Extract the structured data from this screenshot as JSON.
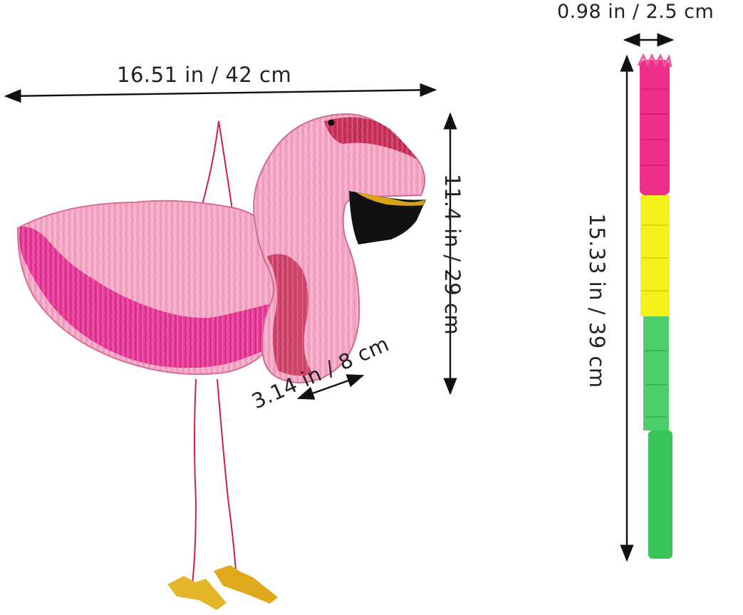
{
  "product": {
    "subject": "flamingo-pinata-with-stick",
    "colors": {
      "body_pink": "#f4a7c4",
      "wing_magenta": "#e83c9a",
      "neck_red": "#c4204a",
      "beak_black": "#111111",
      "beak_gold": "#d9a21a",
      "feet_gold": "#e5b52a",
      "stick_pink": "#ee2f8a",
      "stick_yellow": "#f4f21a",
      "stick_green": "#4ccf6a"
    }
  },
  "dimensions": {
    "width": "16.51 in / 42 cm",
    "height": "11.4 in / 29 cm",
    "depth": "3.14 in / 8 cm",
    "stick_width": "0.98 in / 2.5 cm",
    "stick_height": "15.33 in / 39 cm"
  }
}
